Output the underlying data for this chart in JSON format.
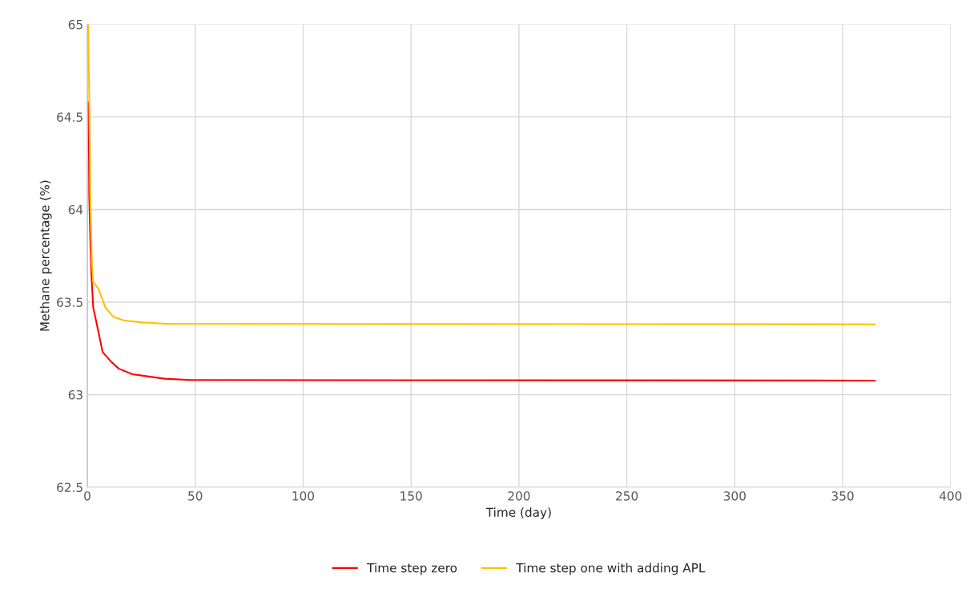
{
  "chart_data": {
    "type": "line",
    "xlabel": "Time (day)",
    "ylabel": "Methane percentage (%)",
    "xlim": [
      0,
      400
    ],
    "xticks": [
      0,
      50,
      100,
      150,
      200,
      250,
      300,
      350,
      400
    ],
    "ylim": [
      62.5,
      65
    ],
    "yticks": [
      62.5,
      63,
      63.5,
      64,
      64.5,
      65
    ],
    "grid": true,
    "legend": "bottom",
    "marker": "none",
    "line_style": "solid",
    "series": [
      {
        "name": "Time step zero",
        "color": "#ff0000",
        "x": [
          0.6,
          0.9,
          1.5,
          1.9,
          2.75,
          4.6,
          7.1,
          10.9,
          14.6,
          20.9,
          27.1,
          35.9,
          47.75,
          365
        ],
        "values": [
          64.58,
          64.07,
          63.79,
          63.65,
          63.47,
          63.37,
          63.23,
          63.18,
          63.14,
          63.11,
          63.1,
          63.086,
          63.079,
          63.076
        ]
      },
      {
        "name": "Time step one with adding APL",
        "color": "#ffc000",
        "x": [
          0.4,
          0.9,
          1.4,
          2.1,
          2.75,
          5.25,
          8.4,
          12.1,
          17.1,
          25.9,
          37.75,
          365
        ],
        "values": [
          65,
          64.62,
          64.07,
          63.72,
          63.61,
          63.57,
          63.47,
          63.42,
          63.4,
          63.39,
          63.382,
          63.38
        ]
      }
    ]
  }
}
